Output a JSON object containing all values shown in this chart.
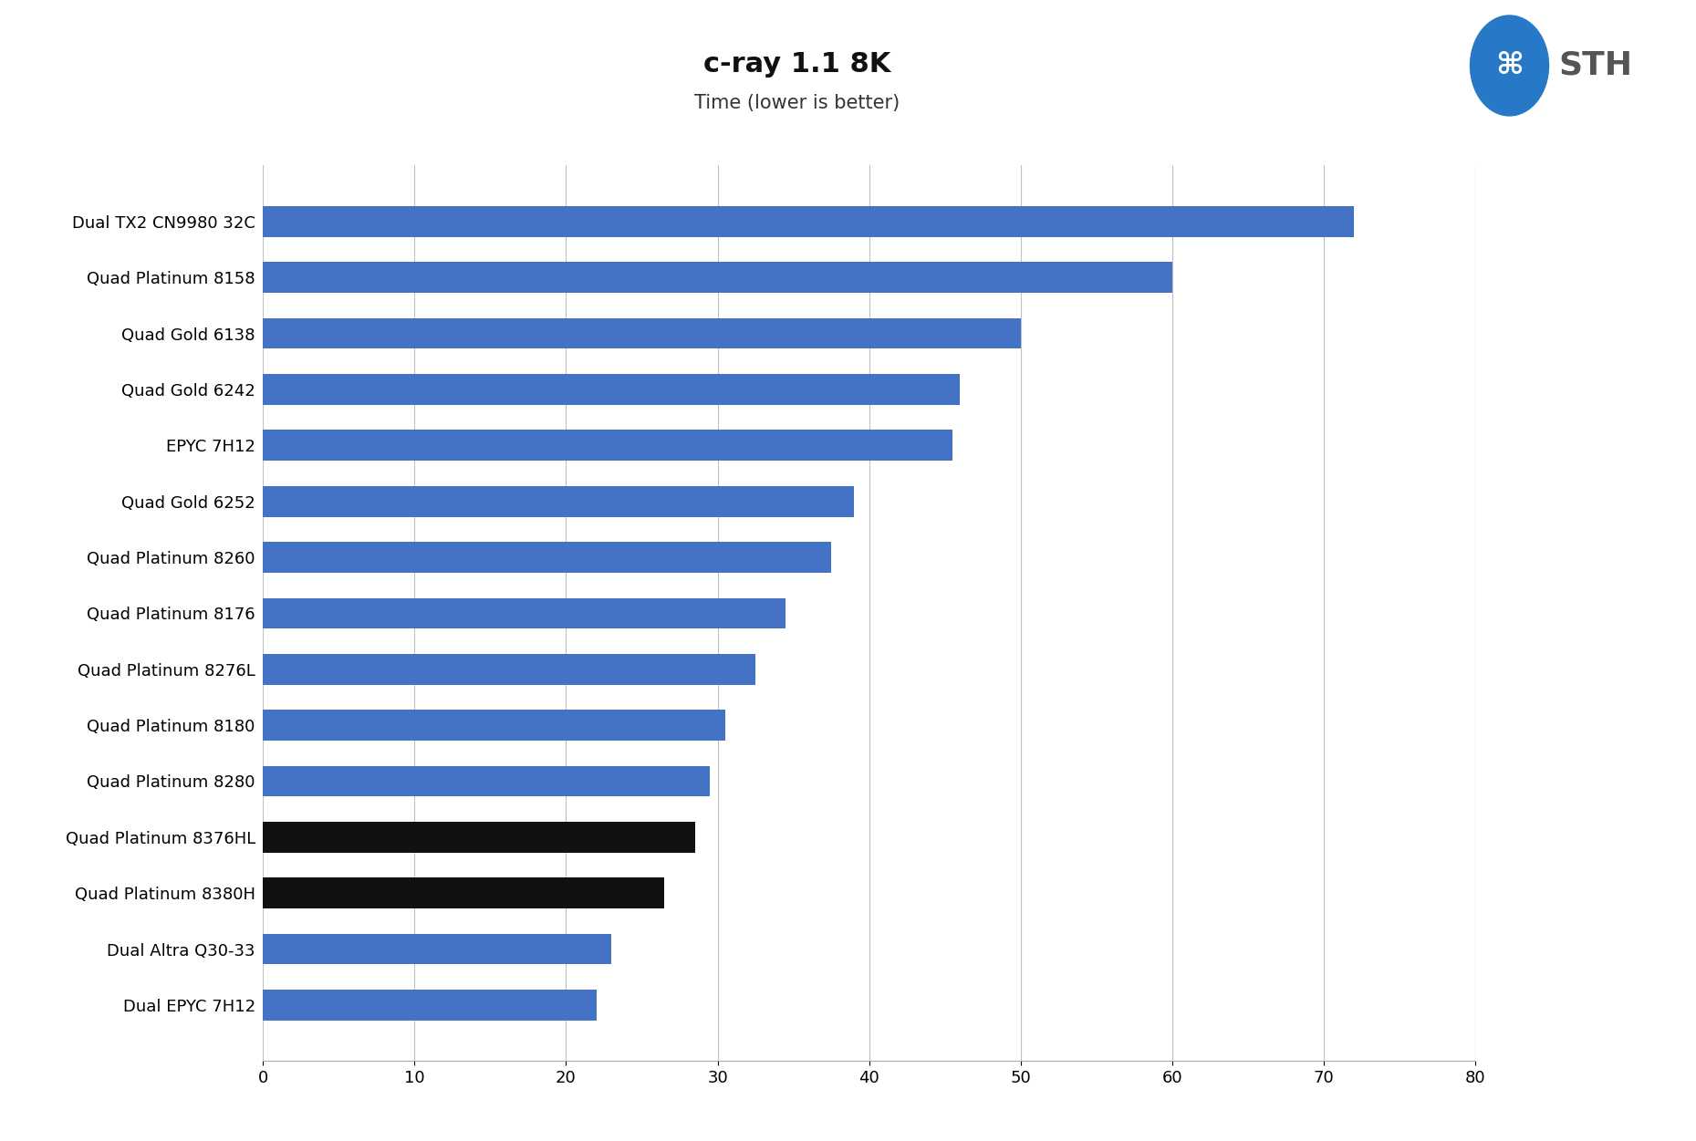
{
  "title": "c-ray 1.1 8K",
  "subtitle": "Time (lower is better)",
  "categories": [
    "Dual TX2 CN9980 32C",
    "Quad Platinum 8158",
    "Quad Gold 6138",
    "Quad Gold 6242",
    "EPYC 7H12",
    "Quad Gold 6252",
    "Quad Platinum 8260",
    "Quad Platinum 8176",
    "Quad Platinum 8276L",
    "Quad Platinum 8180",
    "Quad Platinum 8280",
    "Quad Platinum 8376HL",
    "Quad Platinum 8380H",
    "Dual Altra Q30-33",
    "Dual EPYC 7H12"
  ],
  "values": [
    72.0,
    60.0,
    50.0,
    46.0,
    45.5,
    39.0,
    37.5,
    34.5,
    32.5,
    30.5,
    29.5,
    28.5,
    26.5,
    23.0,
    22.0
  ],
  "bar_colors": [
    "#4472c4",
    "#4472c4",
    "#4472c4",
    "#4472c4",
    "#4472c4",
    "#4472c4",
    "#4472c4",
    "#4472c4",
    "#4472c4",
    "#4472c4",
    "#4472c4",
    "#111111",
    "#111111",
    "#4472c4",
    "#4472c4"
  ],
  "xlim": [
    0,
    80
  ],
  "xticks": [
    0,
    10,
    20,
    30,
    40,
    50,
    60,
    70,
    80
  ],
  "background_color": "#ffffff",
  "grid_color": "#c0c0c0",
  "title_fontsize": 22,
  "subtitle_fontsize": 15,
  "tick_fontsize": 13,
  "label_fontsize": 13,
  "bar_height": 0.55
}
